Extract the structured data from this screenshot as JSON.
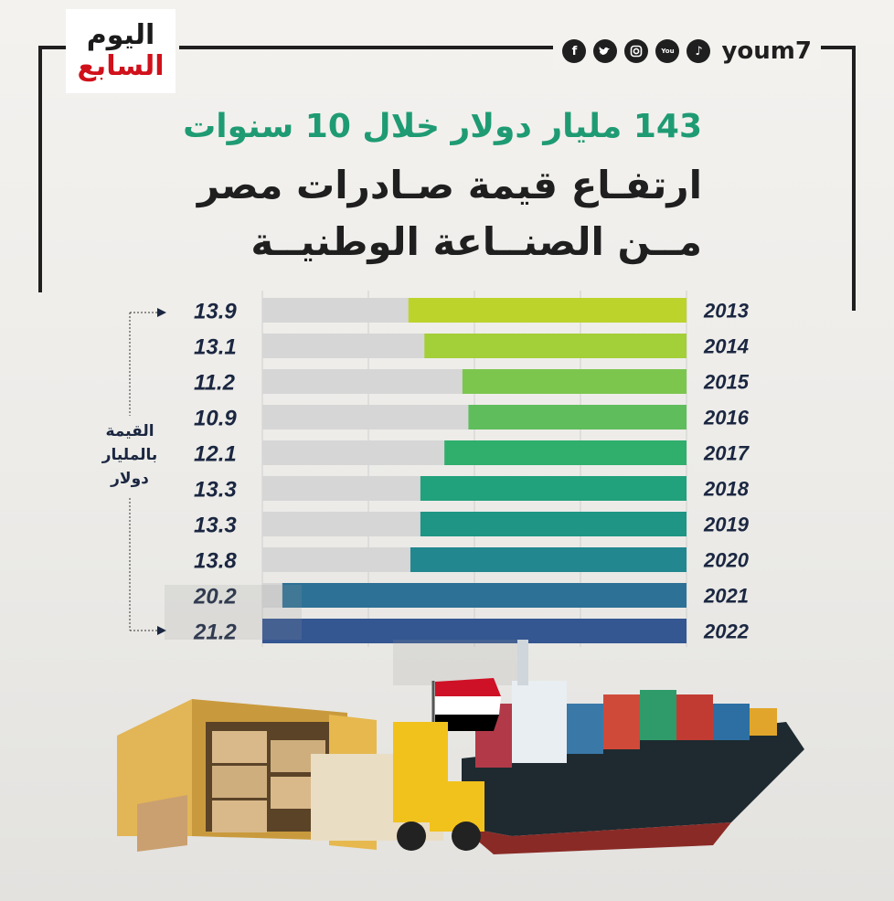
{
  "header": {
    "logo_line1": "اليوم",
    "logo_line2": "السابع",
    "brand": "youm7",
    "social_icons": [
      "facebook-icon",
      "twitter-icon",
      "instagram-icon",
      "youtube-icon",
      "tiktok-icon"
    ]
  },
  "titles": {
    "line1": "143 مليار دولار خلال 10 سنوات",
    "line2": "ارتفـاع قيمة صـادرات مصر",
    "line3": "مــن الصنــاعة الوطنيــة"
  },
  "colors": {
    "accent": "#1f9b73",
    "bar_background": "#d6d6d6",
    "text_dark": "#1b2741",
    "logo_red": "#d0111b"
  },
  "chart_data": {
    "type": "bar",
    "orientation": "horizontal",
    "categories": [
      "2013",
      "2014",
      "2015",
      "2016",
      "2017",
      "2018",
      "2019",
      "2020",
      "2021",
      "2022"
    ],
    "values": [
      13.9,
      13.1,
      11.2,
      10.9,
      12.1,
      13.3,
      13.3,
      13.8,
      20.2,
      21.2
    ],
    "value_labels": [
      "13.9",
      "13.1",
      "11.2",
      "10.9",
      "12.1",
      "13.3",
      "13.3",
      "13.8",
      "20.2",
      "21.2"
    ],
    "bar_colors": [
      "#bcd32b",
      "#a3cf38",
      "#7cc64e",
      "#5fbd5c",
      "#2fae6c",
      "#21a17c",
      "#1f9585",
      "#22878f",
      "#2d7196",
      "#345691"
    ],
    "ylabel": "القيمة بالمليار دولار",
    "xlim": [
      0,
      21.2
    ],
    "bar_direction": "right-to-left",
    "grid": true
  }
}
